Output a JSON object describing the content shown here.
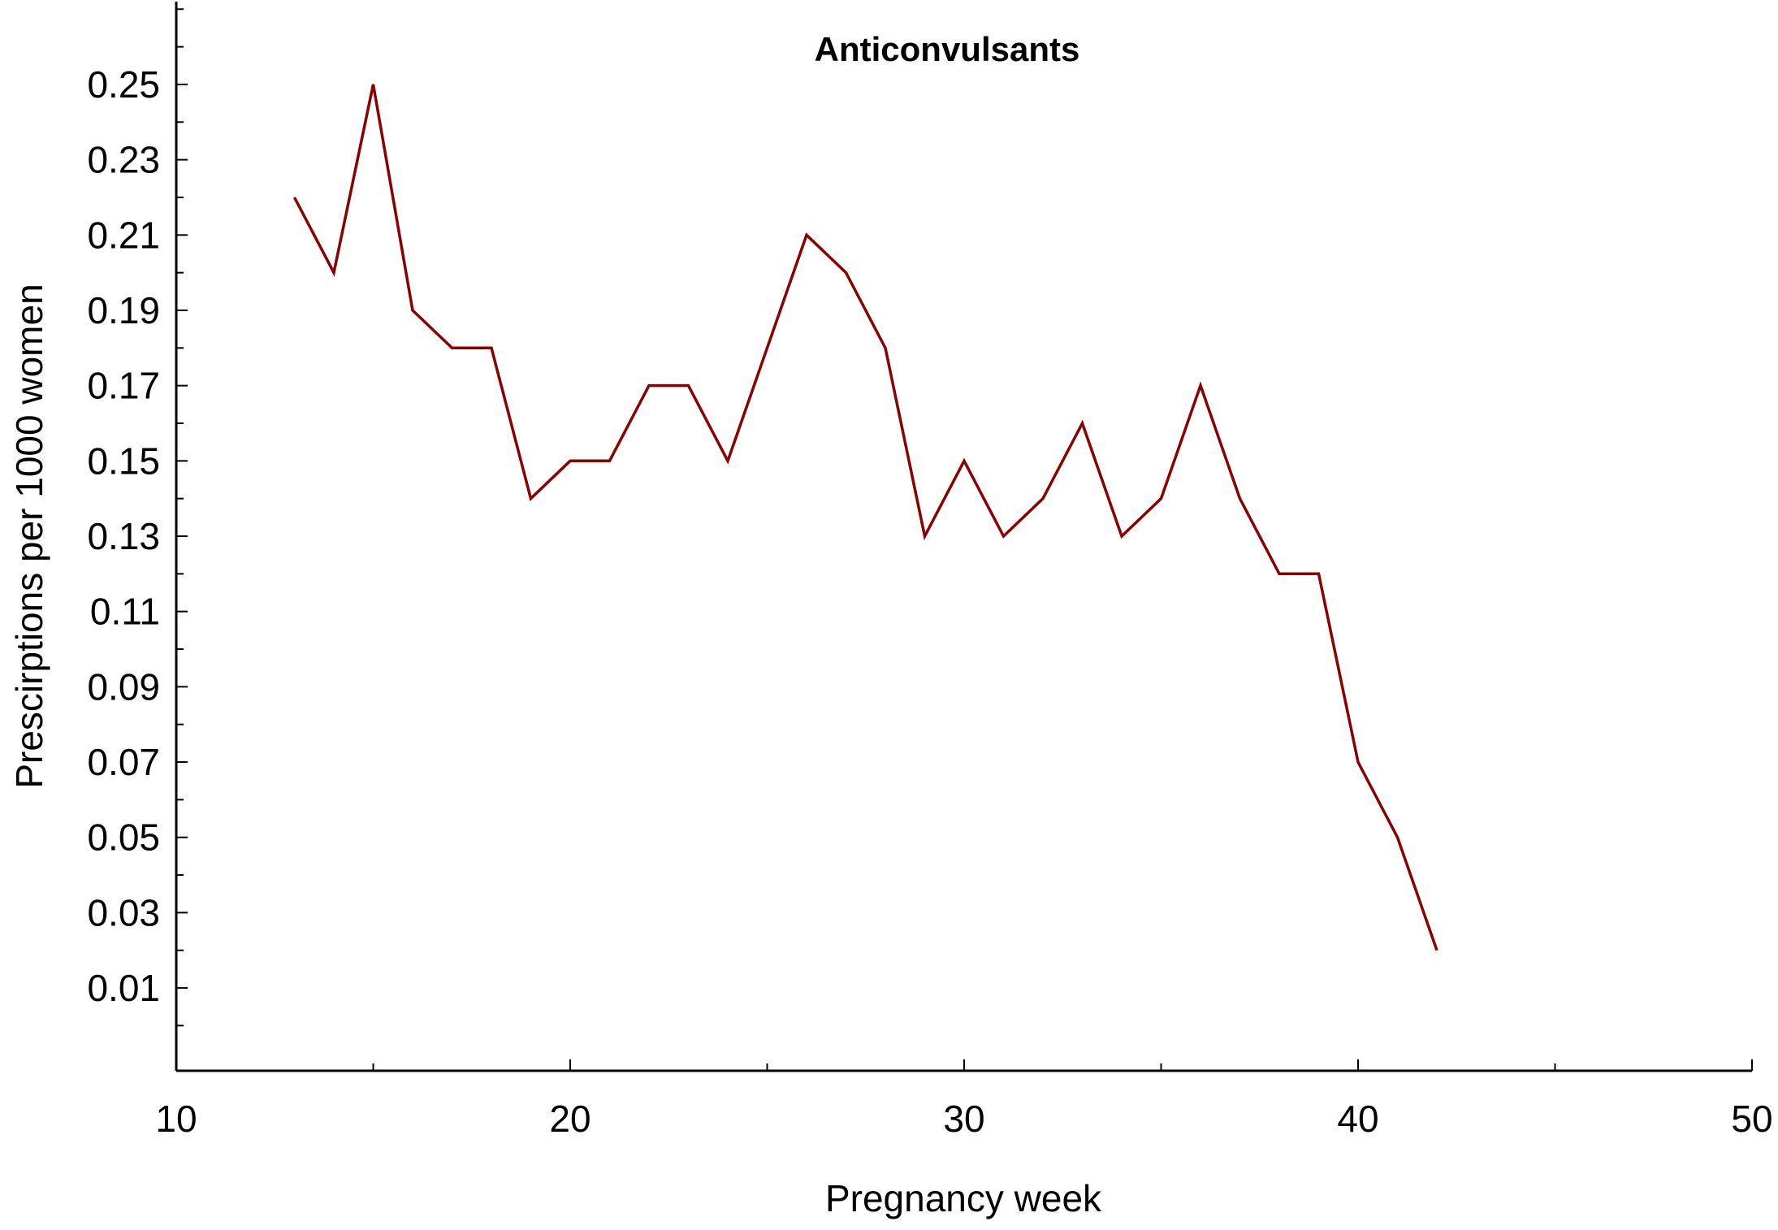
{
  "chart_data": {
    "type": "line",
    "title": "Anticonvulsants",
    "xlabel": "Pregnancy week",
    "ylabel": "Prescirptions per 1000 women",
    "xlim": [
      10,
      50
    ],
    "ylim": [
      -0.012,
      0.272
    ],
    "x_ticks": [
      10,
      20,
      30,
      40,
      50
    ],
    "x_tick_labels": [
      "10",
      "20",
      "30",
      "40",
      "50"
    ],
    "y_ticks": [
      0.01,
      0.03,
      0.05,
      0.07,
      0.09,
      0.11,
      0.13,
      0.15,
      0.17,
      0.19,
      0.21,
      0.23,
      0.25
    ],
    "y_tick_labels": [
      "0.01",
      "0.03",
      "0.05",
      "0.07",
      "0.09",
      "0.11",
      "0.13",
      "0.15",
      "0.17",
      "0.19",
      "0.21",
      "0.23",
      "0.25"
    ],
    "grid": false,
    "series": [
      {
        "color": "#8B0000",
        "x": [
          13,
          14,
          15,
          16,
          17,
          18,
          19,
          20,
          21,
          22,
          23,
          24,
          25,
          26,
          27,
          28,
          29,
          30,
          31,
          32,
          33,
          34,
          35,
          36,
          37,
          38,
          39,
          40,
          41,
          42
        ],
        "y": [
          0.22,
          0.2,
          0.25,
          0.19,
          0.18,
          0.18,
          0.14,
          0.15,
          0.15,
          0.17,
          0.17,
          0.15,
          0.18,
          0.21,
          0.2,
          0.18,
          0.13,
          0.15,
          0.13,
          0.14,
          0.16,
          0.13,
          0.14,
          0.17,
          0.14,
          0.12,
          0.12,
          0.07,
          0.05,
          0.02
        ]
      }
    ]
  }
}
